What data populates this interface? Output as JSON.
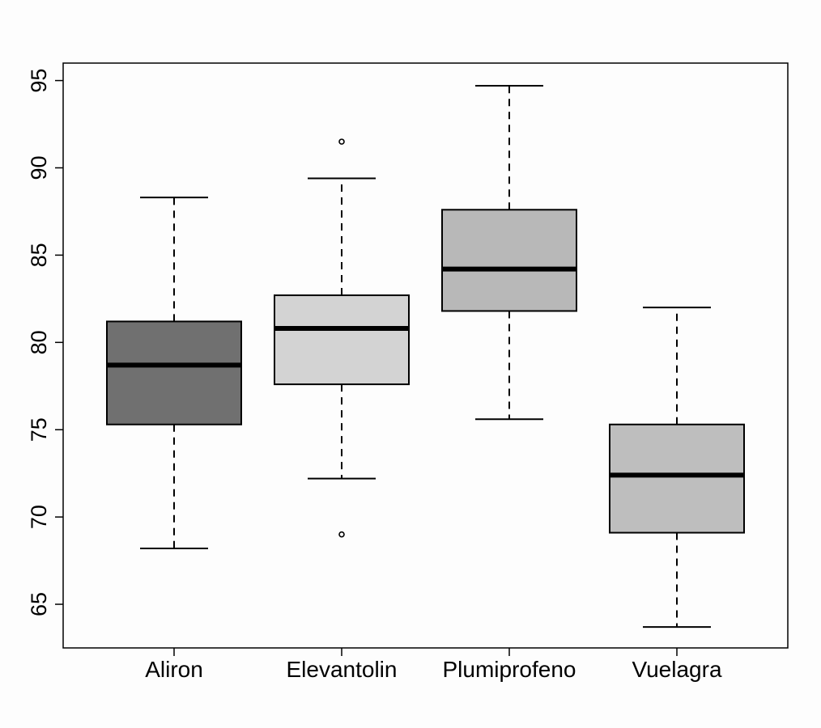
{
  "chart_data": {
    "type": "boxplot",
    "title": "",
    "xlabel": "",
    "ylabel": "",
    "ylim": [
      62.5,
      96.0
    ],
    "yticks": [
      65,
      70,
      75,
      80,
      85,
      90,
      95
    ],
    "ytick_labels": [
      "65",
      "70",
      "75",
      "80",
      "85",
      "90",
      "95"
    ],
    "grid": false,
    "legend": "none",
    "categories": [
      "Aliron",
      "Elevantolin",
      "Plumiprofeno",
      "Vuelagra"
    ],
    "boxes": [
      {
        "category": "Aliron",
        "whisker_low": 68.2,
        "q1": 75.3,
        "median": 78.7,
        "q3": 81.2,
        "whisker_high": 88.3,
        "outliers": [],
        "fill": "#707070"
      },
      {
        "category": "Elevantolin",
        "whisker_low": 72.2,
        "q1": 77.6,
        "median": 80.8,
        "q3": 82.7,
        "whisker_high": 89.4,
        "outliers": [
          91.5,
          69.0
        ],
        "fill": "#d3d3d3"
      },
      {
        "category": "Plumiprofeno",
        "whisker_low": 75.6,
        "q1": 81.8,
        "median": 84.2,
        "q3": 87.6,
        "whisker_high": 94.7,
        "outliers": [],
        "fill": "#b8b8b8"
      },
      {
        "category": "Vuelagra",
        "whisker_low": 63.7,
        "q1": 69.1,
        "median": 72.4,
        "q3": 75.3,
        "whisker_high": 82.0,
        "outliers": [],
        "fill": "#bebebe"
      }
    ]
  }
}
